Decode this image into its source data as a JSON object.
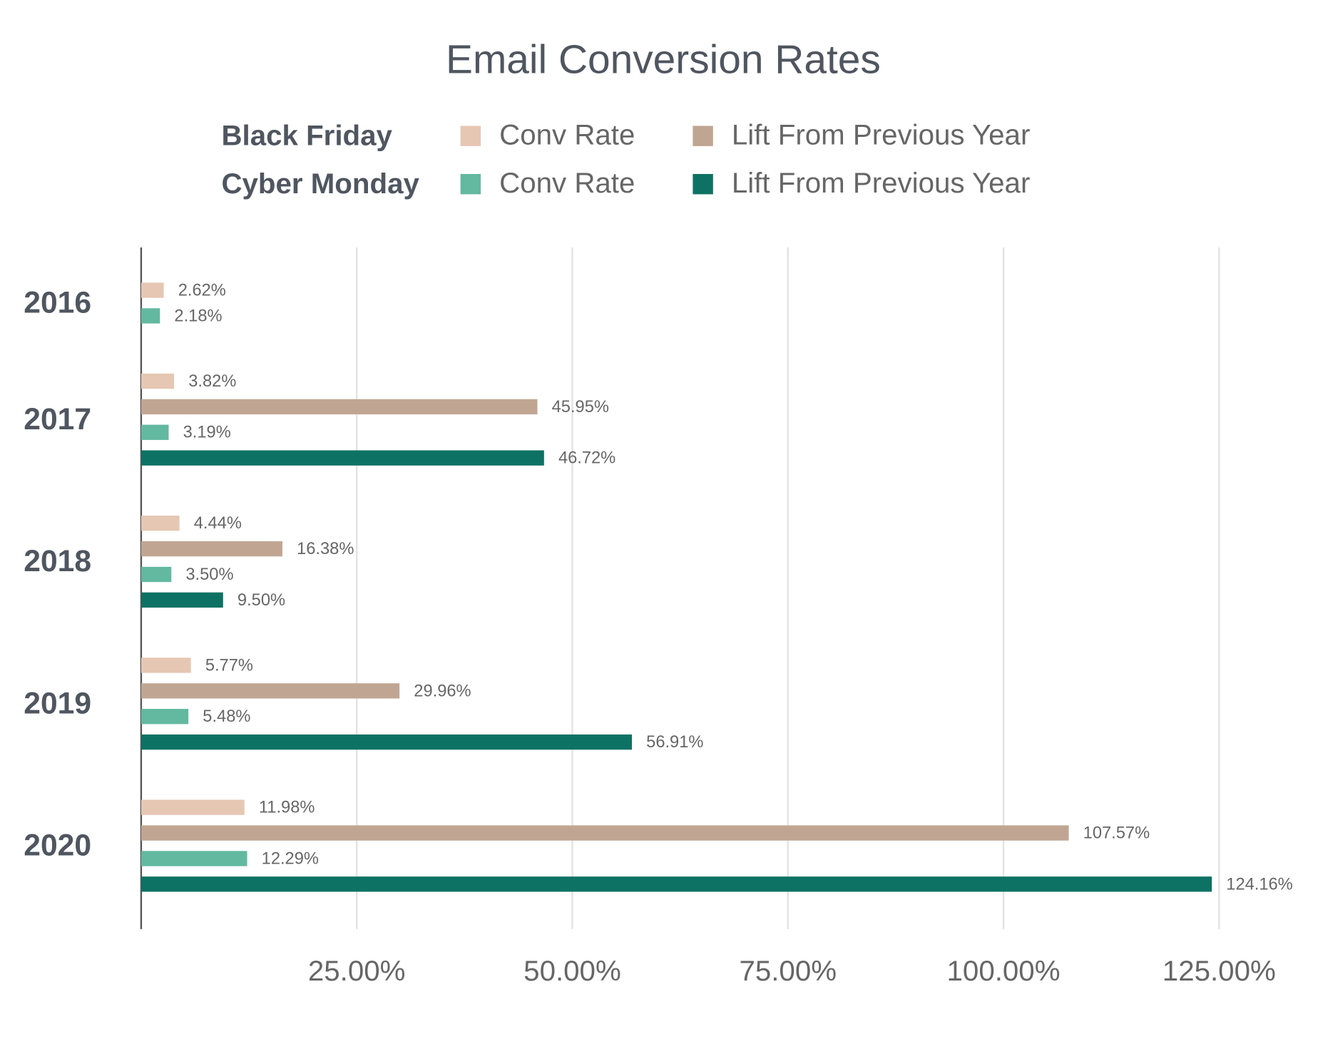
{
  "chart_data": {
    "type": "bar",
    "orientation": "horizontal",
    "title": "Email Conversion Rates",
    "categories": [
      "2016",
      "2017",
      "2018",
      "2019",
      "2020"
    ],
    "series": [
      {
        "group": "Black Friday",
        "name": "Conv Rate",
        "color": "#e5c7b3",
        "values": [
          2.62,
          3.82,
          4.44,
          5.77,
          11.98
        ],
        "value_labels": [
          "2.62%",
          "3.82%",
          "4.44%",
          "5.77%",
          "11.98%"
        ]
      },
      {
        "group": "Black Friday",
        "name": "Lift From Previous Year",
        "color": "#c0a692",
        "values": [
          null,
          45.95,
          16.38,
          29.96,
          107.57
        ],
        "value_labels": [
          null,
          "45.95%",
          "16.38%",
          "29.96%",
          "107.57%"
        ]
      },
      {
        "group": "Cyber Monday",
        "name": "Conv Rate",
        "color": "#62b9a0",
        "values": [
          2.18,
          3.19,
          3.5,
          5.48,
          12.29
        ],
        "value_labels": [
          "2.18%",
          "3.19%",
          "3.50%",
          "5.48%",
          "12.29%"
        ]
      },
      {
        "group": "Cyber Monday",
        "name": "Lift From Previous Year",
        "color": "#0d7263",
        "values": [
          null,
          46.72,
          9.5,
          56.91,
          124.16
        ],
        "value_labels": [
          null,
          "46.72%",
          "9.50%",
          "56.91%",
          "124.16%"
        ]
      }
    ],
    "xlim": [
      0,
      125
    ],
    "xticks": [
      {
        "value": 25,
        "label": "25.00%"
      },
      {
        "value": 50,
        "label": "50.00%"
      },
      {
        "value": 75,
        "label": "75.00%"
      },
      {
        "value": 100,
        "label": "100.00%"
      },
      {
        "value": 125,
        "label": "125.00%"
      }
    ],
    "grid": true
  }
}
